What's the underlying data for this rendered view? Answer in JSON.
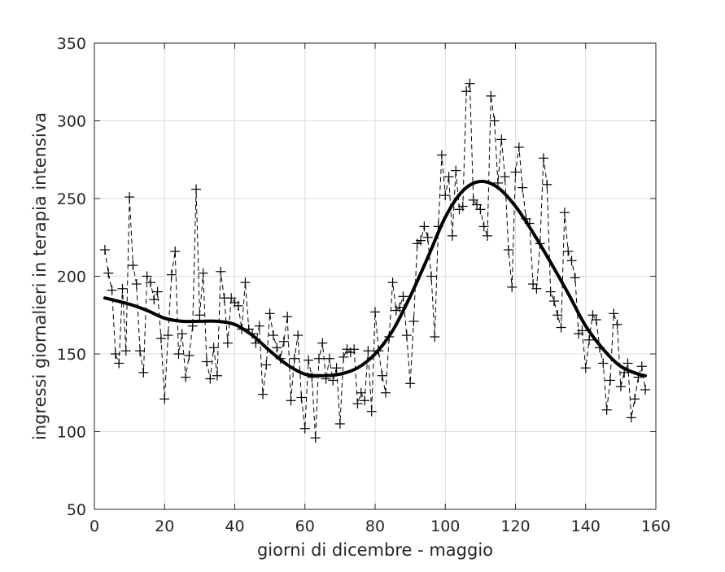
{
  "chart_data": {
    "type": "line",
    "title": "",
    "xlabel": "giorni di dicembre - maggio",
    "ylabel": "ingressi giornalieri in terapia intensiva",
    "xlim": [
      0,
      160
    ],
    "ylim": [
      50,
      350
    ],
    "xticks": [
      0,
      20,
      40,
      60,
      80,
      100,
      120,
      140,
      160
    ],
    "yticks": [
      50,
      100,
      150,
      200,
      250,
      300,
      350
    ],
    "xtick_labels": [
      "0",
      "20",
      "40",
      "60",
      "80",
      "100",
      "120",
      "140",
      "160"
    ],
    "ytick_labels": [
      "50",
      "100",
      "150",
      "200",
      "250",
      "300",
      "350"
    ],
    "grid": true,
    "series": [
      {
        "style": "dashed-with-plus-markers",
        "color": "#000000",
        "x": [
          3,
          4,
          5,
          6,
          7,
          8,
          9,
          10,
          11,
          12,
          13,
          14,
          15,
          16,
          17,
          18,
          19,
          20,
          21,
          22,
          23,
          24,
          25,
          26,
          27,
          28,
          29,
          30,
          31,
          32,
          33,
          34,
          35,
          36,
          37,
          38,
          39,
          40,
          41,
          42,
          43,
          44,
          45,
          46,
          47,
          48,
          49,
          50,
          51,
          52,
          53,
          54,
          55,
          56,
          57,
          58,
          59,
          60,
          61,
          62,
          63,
          64,
          65,
          66,
          67,
          68,
          69,
          70,
          71,
          72,
          73,
          74,
          75,
          76,
          77,
          78,
          79,
          80,
          81,
          82,
          83,
          84,
          85,
          86,
          87,
          88,
          89,
          90,
          91,
          92,
          93,
          94,
          95,
          96,
          97,
          98,
          99,
          100,
          101,
          102,
          103,
          104,
          105,
          106,
          107,
          108,
          109,
          110,
          111,
          112,
          113,
          114,
          115,
          116,
          117,
          118,
          119,
          120,
          121,
          122,
          123,
          124,
          125,
          126,
          127,
          128,
          129,
          130,
          131,
          132,
          133,
          134,
          135,
          136,
          137,
          138,
          139,
          140,
          141,
          142,
          143,
          144,
          145,
          146,
          147,
          148,
          149,
          150,
          151,
          152,
          153,
          154,
          155,
          156,
          157
        ],
        "y": [
          217,
          202,
          191,
          150,
          144,
          192,
          152,
          251,
          207,
          195,
          152,
          138,
          200,
          196,
          185,
          190,
          160,
          121,
          162,
          201,
          216,
          150,
          163,
          135,
          149,
          168,
          256,
          175,
          202,
          145,
          134,
          154,
          136,
          203,
          186,
          157,
          186,
          183,
          181,
          166,
          196,
          166,
          163,
          157,
          168,
          124,
          143,
          176,
          162,
          154,
          147,
          158,
          174,
          120,
          147,
          162,
          122,
          102,
          146,
          135,
          96,
          147,
          157,
          134,
          147,
          133,
          141,
          105,
          148,
          153,
          151,
          153,
          118,
          125,
          120,
          152,
          113,
          177,
          152,
          136,
          125,
          161,
          196,
          178,
          180,
          187,
          162,
          131,
          171,
          221,
          223,
          232,
          225,
          200,
          161,
          232,
          278,
          252,
          264,
          226,
          268,
          243,
          245,
          319,
          324,
          249,
          246,
          243,
          232,
          226,
          316,
          300,
          260,
          288,
          264,
          217,
          193,
          267,
          283,
          257,
          237,
          234,
          195,
          192,
          221,
          276,
          259,
          190,
          184,
          175,
          167,
          241,
          216,
          210,
          199,
          163,
          165,
          141,
          159,
          175,
          172,
          154,
          144,
          114,
          133,
          176,
          169,
          129,
          138,
          144,
          109,
          121,
          135,
          142,
          127
        ]
      },
      {
        "style": "smooth-thick",
        "color": "#000000",
        "x": [
          3,
          10,
          15,
          20,
          25,
          30,
          35,
          40,
          45,
          50,
          55,
          60,
          65,
          70,
          75,
          80,
          85,
          90,
          95,
          100,
          105,
          110,
          115,
          120,
          125,
          130,
          135,
          140,
          145,
          150,
          155,
          157
        ],
        "y": [
          186,
          182,
          178,
          173,
          171,
          171,
          171,
          169,
          162,
          152,
          143,
          137,
          136,
          137,
          141,
          150,
          165,
          187,
          212,
          238,
          255,
          261,
          257,
          245,
          228,
          209,
          189,
          168,
          153,
          142,
          137,
          136
        ]
      }
    ]
  }
}
